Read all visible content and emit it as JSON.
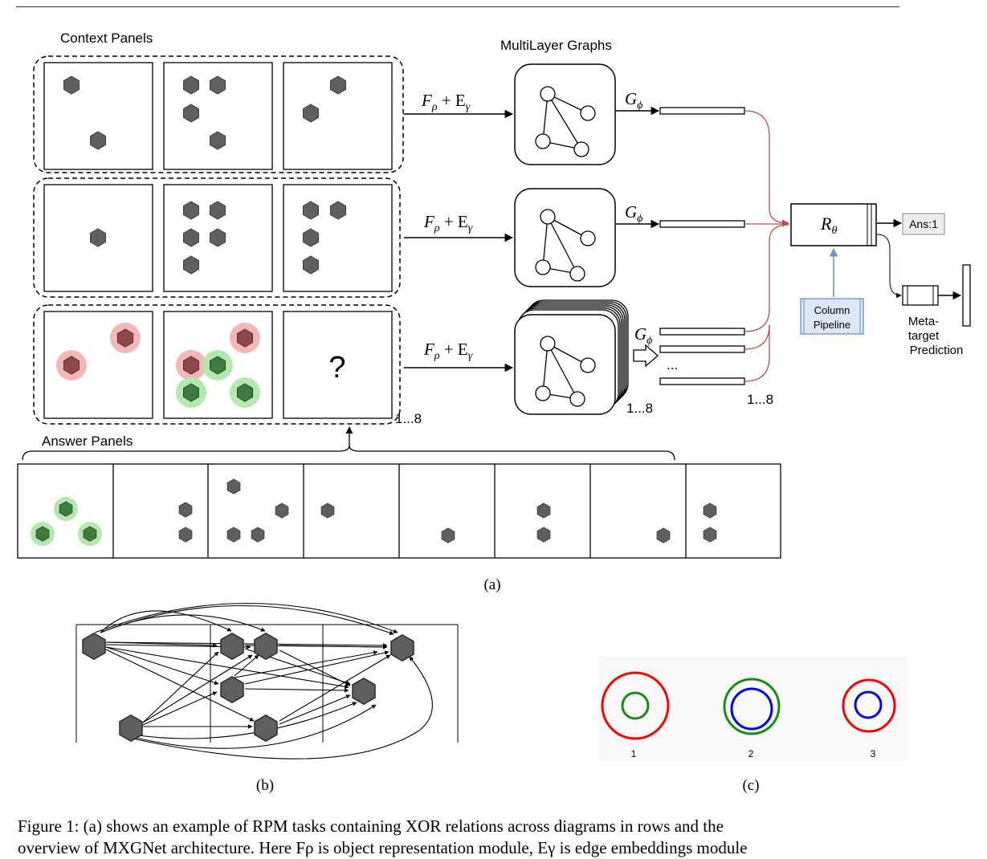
{
  "figure": {
    "labels": {
      "context_panels": "Context Panels",
      "answer_panels": "Answer Panels",
      "multilayer_graphs": "MultiLayer Graphs",
      "question_mark": "?",
      "count_rows": "1...8",
      "count_graphs": "1...8",
      "count_vectors": "1...8",
      "ellipsis": "...",
      "f_rho": "F",
      "f_rho_sub": "ρ",
      "plus": " + E",
      "e_gamma_sub": "γ",
      "g_phi": "G",
      "g_phi_sub": "ϕ",
      "r_theta": "R",
      "r_theta_sub": "θ",
      "ans": "Ans:1",
      "column_pipeline_line1": "Column",
      "column_pipeline_line2": "Pipeline",
      "meta_line1": "Meta-",
      "meta_line2": "target",
      "meta_line3": "Prediction"
    },
    "subcaptions": {
      "a": "(a)",
      "b": "(b)",
      "c": "(c)"
    },
    "circle_labels": [
      "1",
      "2",
      "3"
    ]
  },
  "caption": {
    "line1": "Figure 1: (a) shows an example of RPM tasks containing XOR relations across diagrams in rows and the",
    "line2": "overview of MXGNet architecture. Here Fρ is object representation module, Eγ is edge embeddings module"
  },
  "colors": {
    "hex_fill": "#5f5f5f",
    "red_highlight": "#f3b7b7",
    "green_highlight": "#b5e8b0",
    "red_hex": "#8a4a4a",
    "green_hex": "#3f7a3f",
    "arrow_red": "#b5524a",
    "arrow_blue": "#6b8fc7",
    "circle_red": "#ff0000",
    "circle_green": "#1a8a1a",
    "circle_blue": "#0000ff"
  }
}
